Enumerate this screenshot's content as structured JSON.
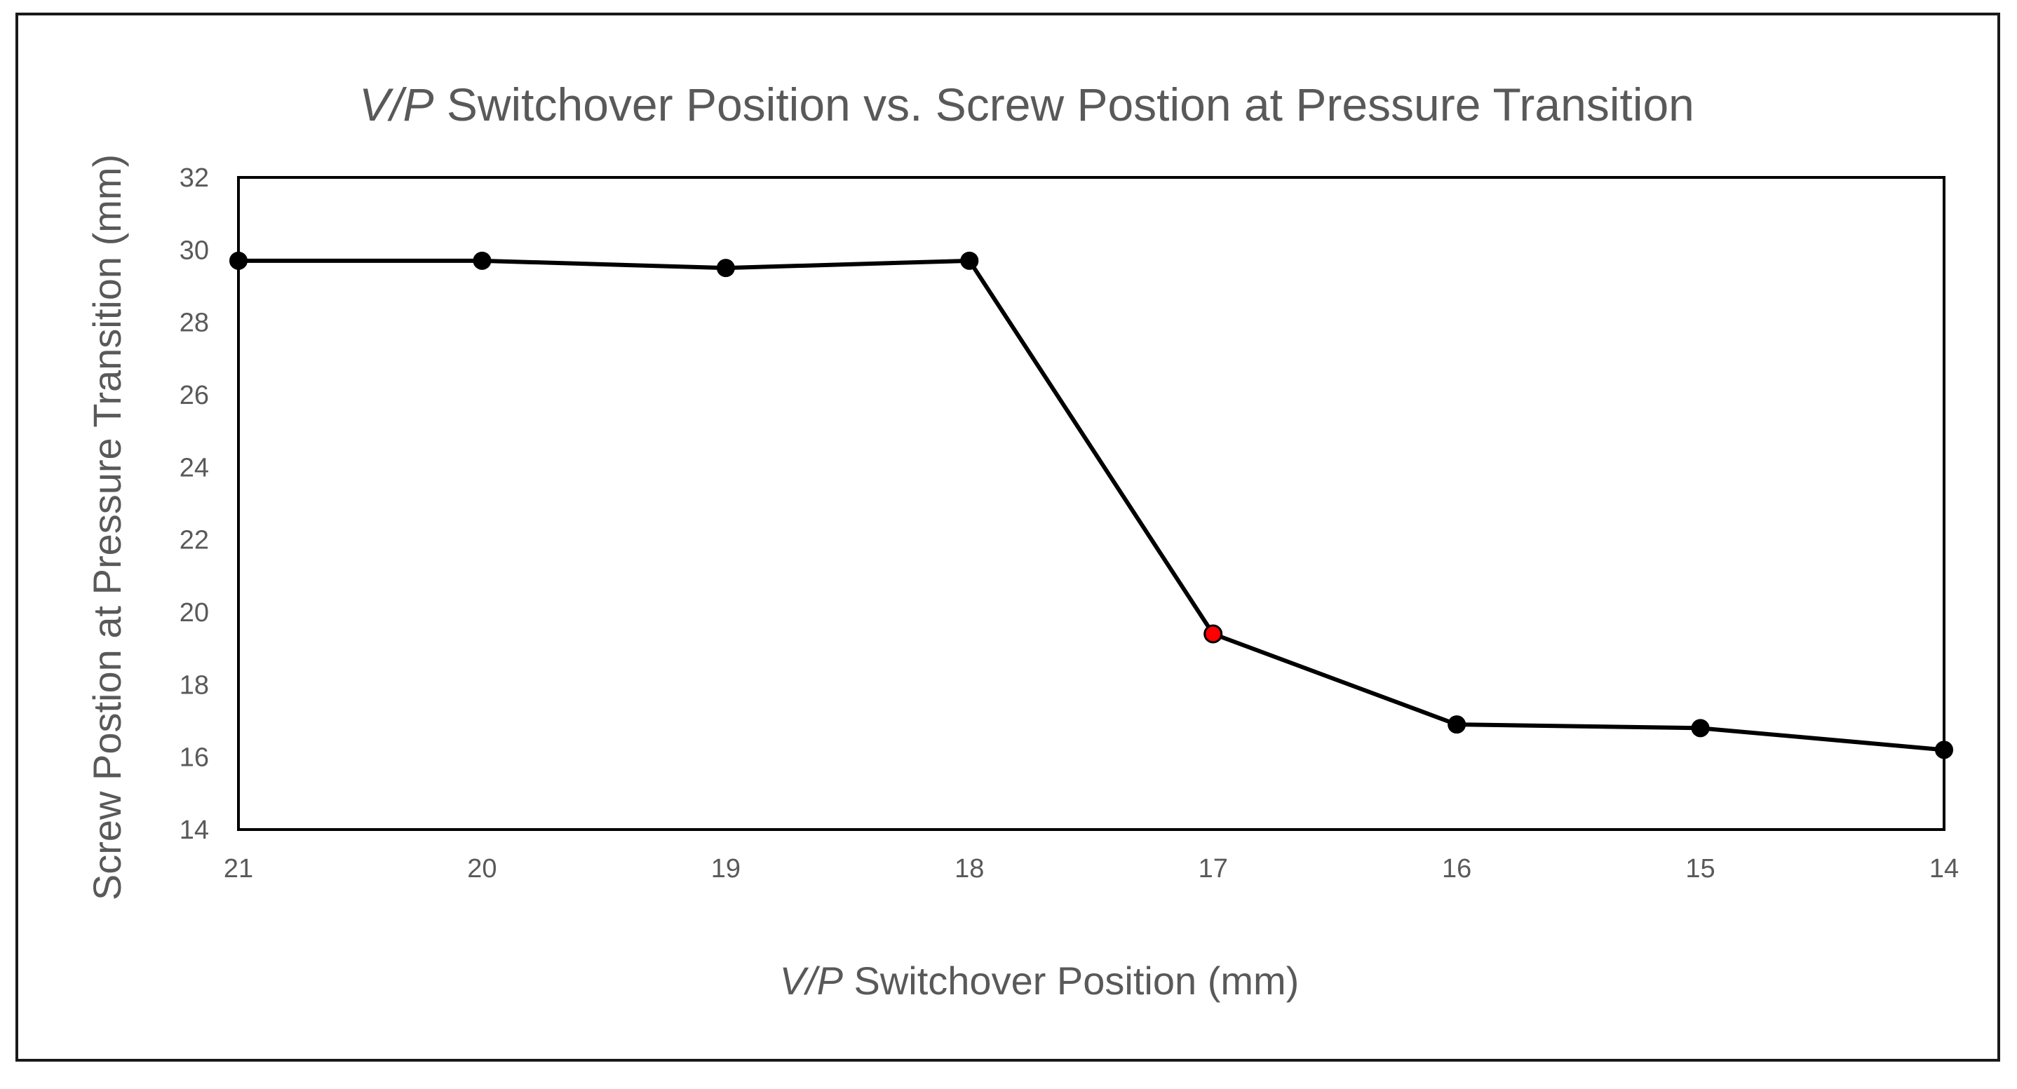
{
  "chart_data": {
    "type": "line",
    "title_italic": "V/P",
    "title_rest": " Switchover Position vs. Screw Postion at Pressure Transition",
    "xlabel_italic": "V/P",
    "xlabel_rest": " Switchover Position (mm)",
    "ylabel": "Screw Postion at Pressure Transition (mm)",
    "x": [
      21,
      20,
      19,
      18,
      17,
      16,
      15,
      14
    ],
    "x_tick_labels": [
      "21",
      "20",
      "19",
      "18",
      "17",
      "16",
      "15",
      "14"
    ],
    "xlim": [
      21,
      14
    ],
    "x_reversed": true,
    "ylim": [
      14,
      32
    ],
    "y_ticks": [
      14,
      16,
      18,
      20,
      22,
      24,
      26,
      28,
      30,
      32
    ],
    "y_tick_labels": [
      "14",
      "16",
      "18",
      "20",
      "22",
      "24",
      "26",
      "28",
      "30",
      "32"
    ],
    "grid": false,
    "legend": "none",
    "series": [
      {
        "name": "Screw Position",
        "values": [
          29.7,
          29.7,
          29.5,
          29.7,
          19.4,
          16.9,
          16.8,
          16.2
        ],
        "color": "#000000",
        "marker_color": "#000000",
        "highlight_index": 4,
        "highlight_color": "#ff0000"
      }
    ]
  }
}
